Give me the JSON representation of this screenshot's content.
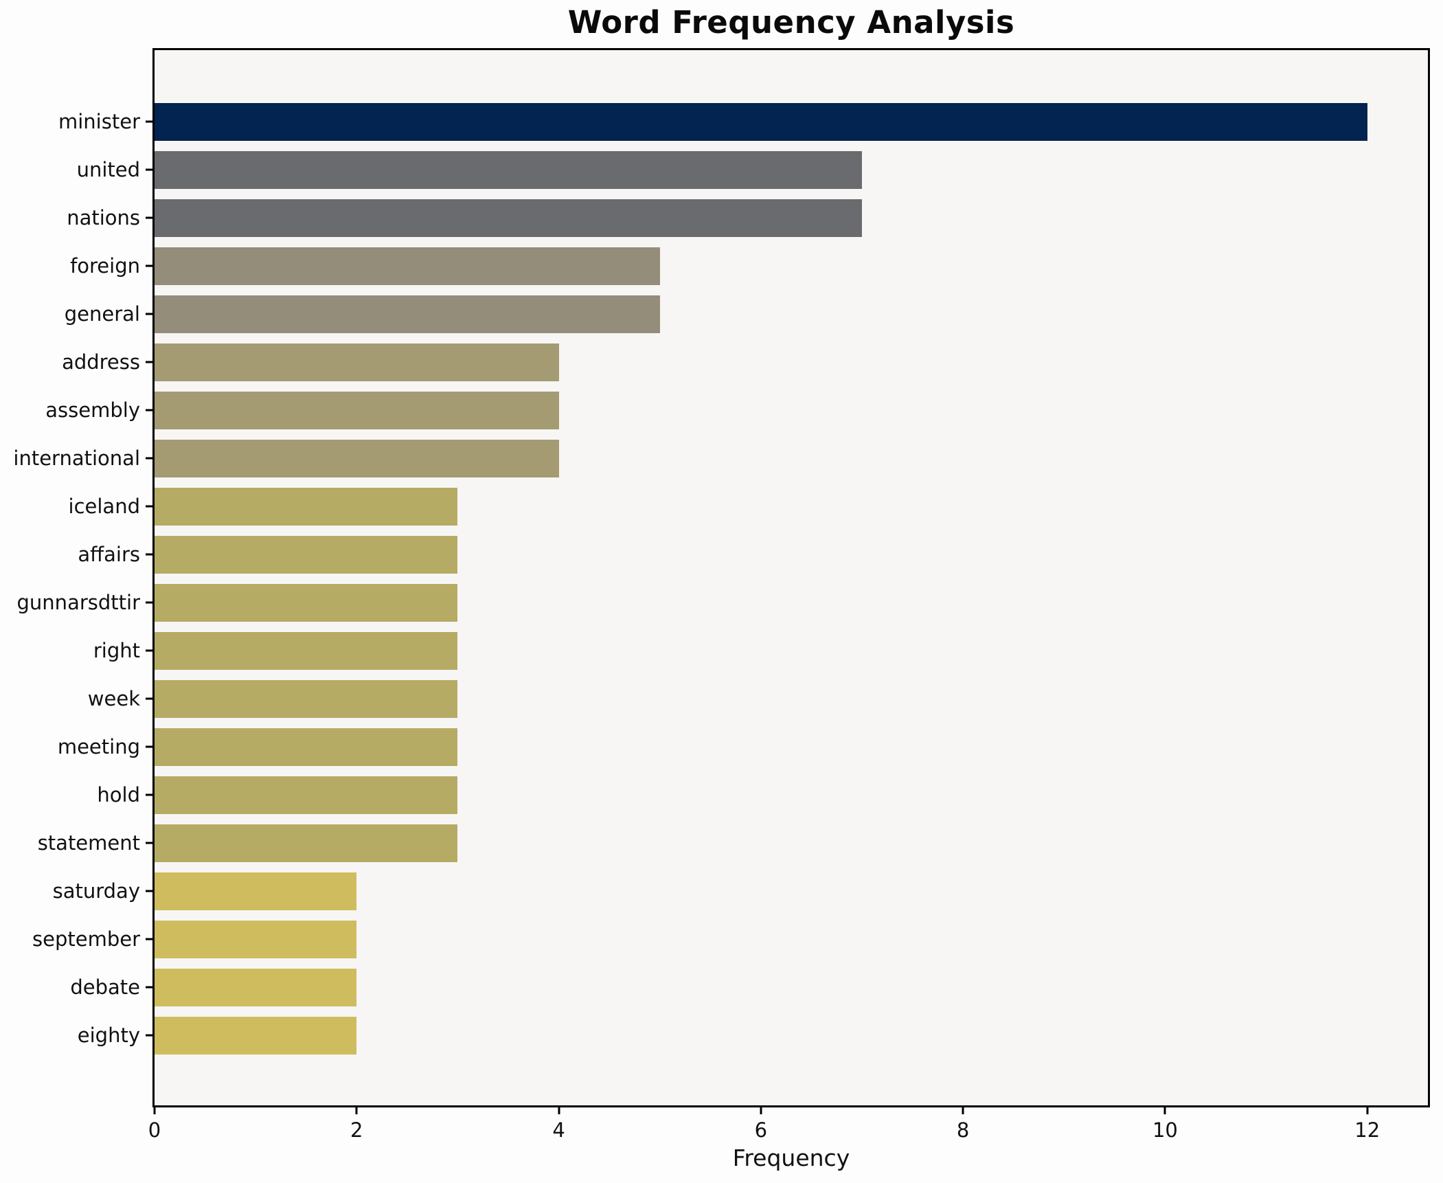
{
  "chart_data": {
    "type": "bar",
    "orientation": "horizontal",
    "title": "Word Frequency Analysis",
    "xlabel": "Frequency",
    "ylabel": "",
    "categories": [
      "minister",
      "united",
      "nations",
      "foreign",
      "general",
      "address",
      "assembly",
      "international",
      "iceland",
      "affairs",
      "gunnarsdttir",
      "right",
      "week",
      "meeting",
      "hold",
      "statement",
      "saturday",
      "september",
      "debate",
      "eighty"
    ],
    "values": [
      12,
      7,
      7,
      5,
      5,
      4,
      4,
      4,
      3,
      3,
      3,
      3,
      3,
      3,
      3,
      3,
      2,
      2,
      2,
      2
    ],
    "bar_colors": [
      "#032350",
      "#6a6b6e",
      "#6a6b6e",
      "#948d79",
      "#948d79",
      "#a49b73",
      "#a49b73",
      "#a49b73",
      "#b5ab65",
      "#b5ab65",
      "#b5ab65",
      "#b5ab65",
      "#b5ab65",
      "#b5ab65",
      "#b5ab65",
      "#b5ab65",
      "#cebc5e",
      "#cebc5e",
      "#cebc5e",
      "#cebc5e"
    ],
    "xlim": [
      0,
      12.6
    ],
    "xticks": [
      0,
      2,
      4,
      6,
      8,
      10,
      12
    ],
    "grid": false,
    "legend": null,
    "colors": {
      "axes_background": "#f7f6f4",
      "figure_background": "#fdfdfd",
      "spine_color": "#000000",
      "text_color": "#111111"
    }
  }
}
